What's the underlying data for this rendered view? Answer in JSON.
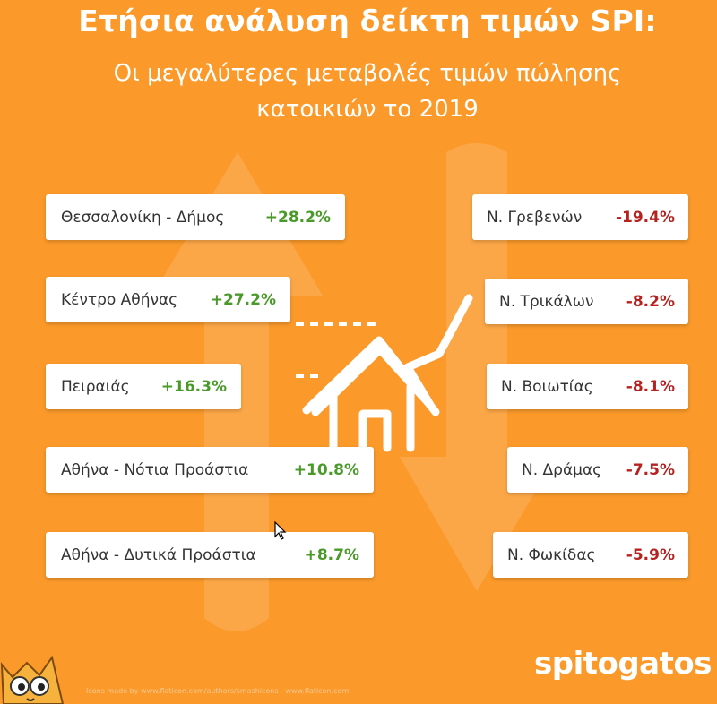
{
  "title": "Ετήσια ανάλυση δείκτη τιμών SPI:",
  "subtitle_line1": "Οι μεγαλύτερες μεταβολές τιμών πώλησης",
  "subtitle_line2": "κατοικιών το 2019",
  "increases": [
    {
      "label": "Θεσσαλονίκη - Δήμος",
      "value": "+28.2%"
    },
    {
      "label": "Κέντρο Αθήνας",
      "value": "+27.2%"
    },
    {
      "label": "Πειραιάς",
      "value": "+16.3%"
    },
    {
      "label": "Αθήνα - Νότια Προάστια",
      "value": "+10.8%"
    },
    {
      "label": "Αθήνα - Δυτικά Προάστια",
      "value": "+8.7%"
    }
  ],
  "decreases": [
    {
      "label": "Ν. Γρεβενών",
      "value": "-19.4%"
    },
    {
      "label": "Ν. Τρικάλων",
      "value": "-8.2%"
    },
    {
      "label": "Ν. Βοιωτίας",
      "value": "-8.1%"
    },
    {
      "label": "Ν. Δράμας",
      "value": "-7.5%"
    },
    {
      "label": "Ν. Φωκίδας",
      "value": "-5.9%"
    }
  ],
  "brand": "spitogatos",
  "credit": "Icons made by www.flaticon.com/authors/smashicons - www.flaticon.com",
  "colors": {
    "background": "#fb9a2a",
    "positive": "#4a9a2a",
    "negative": "#b5221f"
  }
}
